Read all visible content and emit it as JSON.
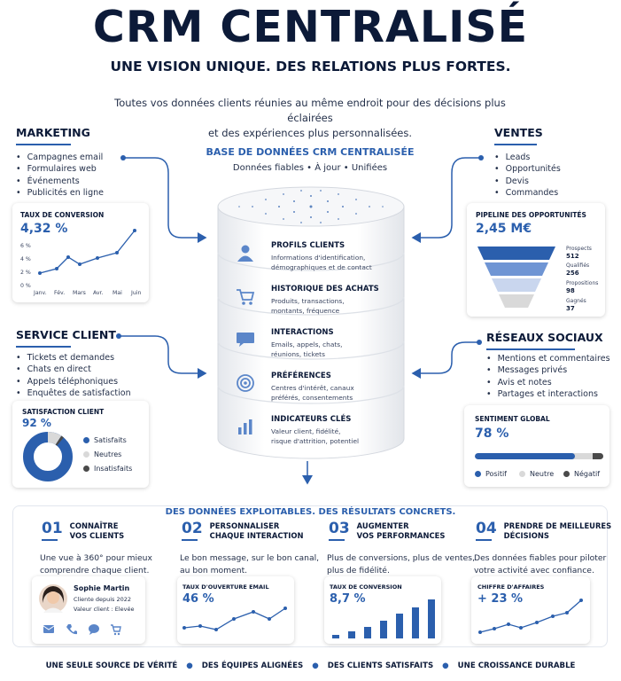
{
  "header": {
    "title": "CRM CENTRALISÉ",
    "subtitle": "UNE VISION UNIQUE. DES RELATIONS PLUS FORTES.",
    "intro_line1": "Toutes vos données clients réunies au même endroit pour des décisions plus éclairées",
    "intro_line2": "et des expériences plus personnalisées."
  },
  "database": {
    "title": "BASE DE DONNÉES CRM CENTRALISÉE",
    "tagline": "Données fiables • À jour • Unifiées",
    "rows": [
      {
        "title": "PROFILS CLIENTS",
        "desc1": "Informations d'identification,",
        "desc2": "démographiques et de contact",
        "icon": "user-icon"
      },
      {
        "title": "HISTORIQUE DES ACHATS",
        "desc1": "Produits, transactions,",
        "desc2": "montants, fréquence",
        "icon": "cart-icon"
      },
      {
        "title": "INTERACTIONS",
        "desc1": "Emails, appels, chats,",
        "desc2": "réunions, tickets",
        "icon": "chat-icon"
      },
      {
        "title": "PRÉFÉRENCES",
        "desc1": "Centres d'intérêt, canaux",
        "desc2": "préférés, consentements",
        "icon": "target-icon"
      },
      {
        "title": "INDICATEURS CLÉS",
        "desc1": "Valeur client, fidélité,",
        "desc2": "risque d'attrition, potentiel",
        "icon": "bar-chart-icon"
      }
    ]
  },
  "marketing": {
    "title": "MARKETING",
    "items": [
      "Campagnes email",
      "Formulaires web",
      "Événements",
      "Publicités en ligne"
    ],
    "card_title": "TAUX DE CONVERSION",
    "card_value": "4,32 %",
    "y_ticks": [
      "6 %",
      "4 %",
      "2 %",
      "0 %"
    ],
    "x_ticks": [
      "Janv.",
      "Fév.",
      "Mars",
      "Avr.",
      "Mai",
      "Juin"
    ]
  },
  "ventes": {
    "title": "VENTES",
    "items": [
      "Leads",
      "Opportunités",
      "Devis",
      "Commandes"
    ],
    "card_title": "PIPELINE DES OPPORTUNITÉS",
    "card_value": "2,45 M€",
    "funnel": [
      {
        "label": "Prospects",
        "value": "512"
      },
      {
        "label": "Qualifiés",
        "value": "256"
      },
      {
        "label": "Propositions",
        "value": "98"
      },
      {
        "label": "Gagnés",
        "value": "37"
      }
    ]
  },
  "service": {
    "title": "SERVICE CLIENT",
    "items": [
      "Tickets et demandes",
      "Chats en direct",
      "Appels téléphoniques",
      "Enquêtes de satisfaction"
    ],
    "card_title": "SATISFACTION CLIENT",
    "card_value": "92 %",
    "legend": [
      "Satisfaits",
      "Neutres",
      "Insatisfaits"
    ]
  },
  "reseaux": {
    "title": "RÉSEAUX SOCIAUX",
    "items": [
      "Mentions et commentaires",
      "Messages privés",
      "Avis et notes",
      "Partages et interactions"
    ],
    "card_title": "SENTIMENT GLOBAL",
    "card_value": "78 %",
    "sentiment_fraction": 0.78,
    "legend": [
      "Positif",
      "Neutre",
      "Négatif"
    ]
  },
  "results": {
    "title": "DES DONNÉES EXPLOITABLES. DES RÉSULTATS CONCRETS.",
    "cols": [
      {
        "num": "01",
        "t1": "CONNAÎTRE",
        "t2": "VOS CLIENTS",
        "d1": "Une vue à 360° pour mieux",
        "d2": "comprendre chaque client."
      },
      {
        "num": "02",
        "t1": "PERSONNALISER",
        "t2": "CHAQUE INTERACTION",
        "d1": "Le bon message, sur le bon canal,",
        "d2": "au bon moment."
      },
      {
        "num": "03",
        "t1": "AUGMENTER",
        "t2": "VOS PERFORMANCES",
        "d1": "Plus de conversions, plus de ventes,",
        "d2": "plus de fidélité."
      },
      {
        "num": "04",
        "t1": "PRENDRE DE MEILLEURES",
        "t2": "DÉCISIONS",
        "d1": "Des données fiables pour piloter",
        "d2": "votre activité avec confiance."
      }
    ],
    "profile": {
      "name": "Sophie Martin",
      "since": "Cliente depuis 2022",
      "value": "Valeur client : Elevée"
    },
    "email_card": {
      "title": "TAUX D'OUVERTURE EMAIL",
      "value": "46 %"
    },
    "conv_card": {
      "title": "TAUX DE CONVERSION",
      "value": "8,7 %"
    },
    "ca_card": {
      "title": "CHIFFRE D'AFFAIRES",
      "value": "+ 23 %"
    }
  },
  "footer": [
    "UNE SEULE SOURCE DE VÉRITÉ",
    "DES ÉQUIPES ALIGNÉES",
    "DES CLIENTS SATISFAITS",
    "UNE CROISSANCE DURABLE"
  ],
  "colors": {
    "navy": "#0c1a38",
    "accent": "#2b5fad",
    "light": "#c9d6ee",
    "grey": "#d9d9d9",
    "dark": "#4a4a4a"
  }
}
